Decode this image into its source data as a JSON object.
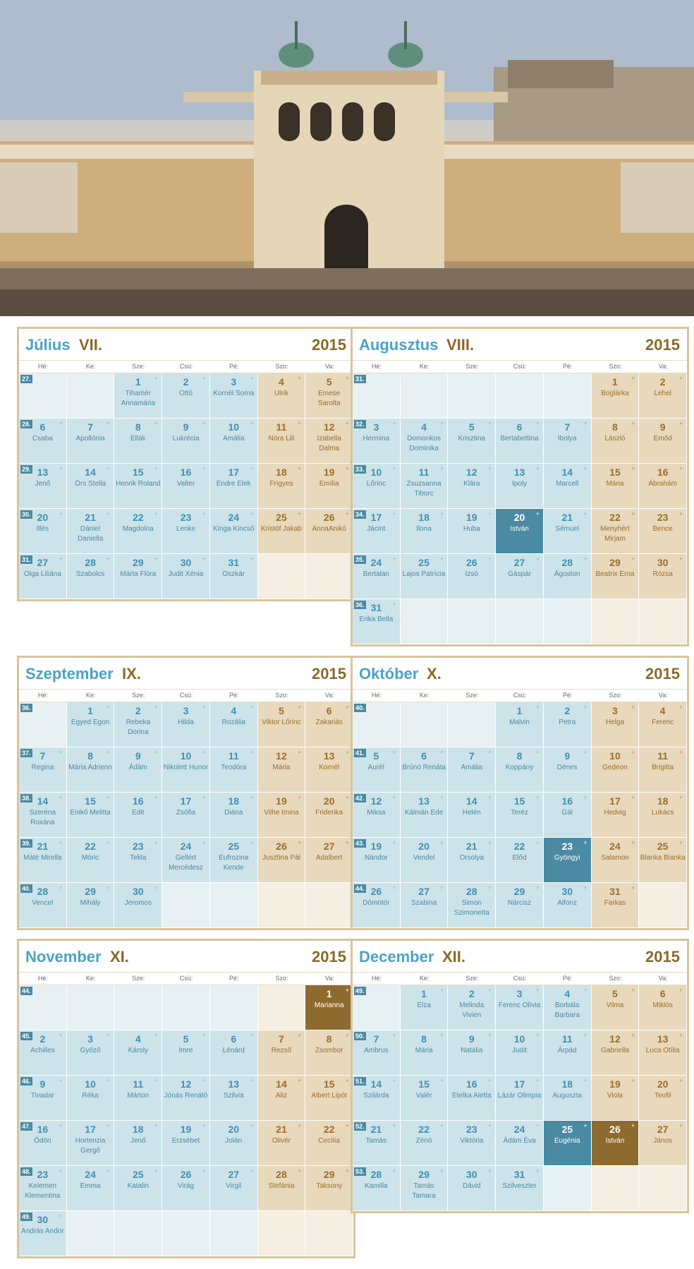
{
  "day_headers": [
    "Hé:",
    "Ke:",
    "Sze:",
    "Csü:",
    "Pé:",
    "Szo:",
    "Va:"
  ],
  "plus_symbol": "+",
  "photo": {
    "description_icon": "buda-castle-garden-photo"
  },
  "colors": {
    "accent_blue": "#4aa3c5",
    "accent_gold": "#8a6a28",
    "weekday_cell": "#cde3ea",
    "weekend_cell": "#e8d8bc"
  },
  "months": [
    {
      "name": "Július",
      "roman": "VII.",
      "year": "2015",
      "weeks": [
        {
          "num": "27.",
          "days": [
            null,
            null,
            {
              "d": "1",
              "n": "Tihamér Annamária"
            },
            {
              "d": "2",
              "n": "Ottó"
            },
            {
              "d": "3",
              "n": "Kornél Soma"
            },
            {
              "d": "4",
              "n": "Ulrik"
            },
            {
              "d": "5",
              "n": "Emese Sarolta"
            }
          ]
        },
        {
          "num": "28.",
          "days": [
            {
              "d": "6",
              "n": "Csaba"
            },
            {
              "d": "7",
              "n": "Apollónia"
            },
            {
              "d": "8",
              "n": "Ellák"
            },
            {
              "d": "9",
              "n": "Lukrécia"
            },
            {
              "d": "10",
              "n": "Amália"
            },
            {
              "d": "11",
              "n": "Nóra Lili"
            },
            {
              "d": "12",
              "n": "Izabella Dalma"
            }
          ]
        },
        {
          "num": "29.",
          "days": [
            {
              "d": "13",
              "n": "Jenő"
            },
            {
              "d": "14",
              "n": "Örs Stella"
            },
            {
              "d": "15",
              "n": "Henrik Roland"
            },
            {
              "d": "16",
              "n": "Valter"
            },
            {
              "d": "17",
              "n": "Endre Elek"
            },
            {
              "d": "18",
              "n": "Frigyes"
            },
            {
              "d": "19",
              "n": "Emília"
            }
          ]
        },
        {
          "num": "30.",
          "days": [
            {
              "d": "20",
              "n": "Illés"
            },
            {
              "d": "21",
              "n": "Dániel Daniella"
            },
            {
              "d": "22",
              "n": "Magdolna"
            },
            {
              "d": "23",
              "n": "Lenke"
            },
            {
              "d": "24",
              "n": "Kinga Kincső"
            },
            {
              "d": "25",
              "n": "Kristóf Jakab"
            },
            {
              "d": "26",
              "n": "AnnaAnikó"
            }
          ]
        },
        {
          "num": "31.",
          "days": [
            {
              "d": "27",
              "n": "Olga Liliána"
            },
            {
              "d": "28",
              "n": "Szabolcs"
            },
            {
              "d": "29",
              "n": "Márta Flóra"
            },
            {
              "d": "30",
              "n": "Judit Xénia"
            },
            {
              "d": "31",
              "n": "Oszkár"
            },
            null,
            null
          ]
        }
      ]
    },
    {
      "name": "Augusztus",
      "roman": "VIII.",
      "year": "2015",
      "weeks": [
        {
          "num": "31.",
          "days": [
            null,
            null,
            null,
            null,
            null,
            {
              "d": "1",
              "n": "Boglárka"
            },
            {
              "d": "2",
              "n": "Lehel"
            }
          ]
        },
        {
          "num": "32.",
          "days": [
            {
              "d": "3",
              "n": "Hermina"
            },
            {
              "d": "4",
              "n": "Domonkos Dominika"
            },
            {
              "d": "5",
              "n": "Krisztina"
            },
            {
              "d": "6",
              "n": "Bertabettina"
            },
            {
              "d": "7",
              "n": "Ibolya"
            },
            {
              "d": "8",
              "n": "László"
            },
            {
              "d": "9",
              "n": "Emőd"
            }
          ]
        },
        {
          "num": "33.",
          "days": [
            {
              "d": "10",
              "n": "Lőrinc"
            },
            {
              "d": "11",
              "n": "Zsuzsanna Tiborc"
            },
            {
              "d": "12",
              "n": "Klára"
            },
            {
              "d": "13",
              "n": "Ipoly"
            },
            {
              "d": "14",
              "n": "Marcell"
            },
            {
              "d": "15",
              "n": "Mária"
            },
            {
              "d": "16",
              "n": "Ábrahám"
            }
          ]
        },
        {
          "num": "34.",
          "days": [
            {
              "d": "17",
              "n": "Jácint"
            },
            {
              "d": "18",
              "n": "Ilona"
            },
            {
              "d": "19",
              "n": "Huba"
            },
            {
              "d": "20",
              "n": "István",
              "hl": true
            },
            {
              "d": "21",
              "n": "Sémuel"
            },
            {
              "d": "22",
              "n": "Menyhért Mirjam"
            },
            {
              "d": "23",
              "n": "Bence"
            }
          ]
        },
        {
          "num": "35.",
          "days": [
            {
              "d": "24",
              "n": "Bertalan"
            },
            {
              "d": "25",
              "n": "Lajos Patrícia"
            },
            {
              "d": "26",
              "n": "Izsó"
            },
            {
              "d": "27",
              "n": "Gáspár"
            },
            {
              "d": "28",
              "n": "Ágoston"
            },
            {
              "d": "29",
              "n": "Beatrix Erna"
            },
            {
              "d": "30",
              "n": "Rózsa"
            }
          ]
        },
        {
          "num": "36.",
          "days": [
            {
              "d": "31",
              "n": "Erika Bella"
            },
            null,
            null,
            null,
            null,
            null,
            null
          ]
        }
      ]
    },
    {
      "name": "Szeptember",
      "roman": "IX.",
      "year": "2015",
      "weeks": [
        {
          "num": "36.",
          "days": [
            null,
            {
              "d": "1",
              "n": "Egyed Egon"
            },
            {
              "d": "2",
              "n": "Rebeka Dorina"
            },
            {
              "d": "3",
              "n": "Hilda"
            },
            {
              "d": "4",
              "n": "Rozália"
            },
            {
              "d": "5",
              "n": "Viktor Lőrinc"
            },
            {
              "d": "6",
              "n": "Zakariás"
            }
          ]
        },
        {
          "num": "37.",
          "days": [
            {
              "d": "7",
              "n": "Regina"
            },
            {
              "d": "8",
              "n": "Mária Adrienn"
            },
            {
              "d": "9",
              "n": "Ádám"
            },
            {
              "d": "10",
              "n": "Nikolett Hunor"
            },
            {
              "d": "11",
              "n": "Teodóra"
            },
            {
              "d": "12",
              "n": "Mária"
            },
            {
              "d": "13",
              "n": "Kornél"
            }
          ]
        },
        {
          "num": "38.",
          "days": [
            {
              "d": "14",
              "n": "Szeréna Roxána"
            },
            {
              "d": "15",
              "n": "Enikő Melitta"
            },
            {
              "d": "16",
              "n": "Edit"
            },
            {
              "d": "17",
              "n": "Zsófia"
            },
            {
              "d": "18",
              "n": "Diána"
            },
            {
              "d": "19",
              "n": "Vilhe Imina"
            },
            {
              "d": "20",
              "n": "Friderika"
            }
          ]
        },
        {
          "num": "39.",
          "days": [
            {
              "d": "21",
              "n": "Máté Mirella"
            },
            {
              "d": "22",
              "n": "Móric"
            },
            {
              "d": "23",
              "n": "Tekla"
            },
            {
              "d": "24",
              "n": "Gellért Mercédesz"
            },
            {
              "d": "25",
              "n": "Eufrozina Kende"
            },
            {
              "d": "26",
              "n": "Jusztina Pál"
            },
            {
              "d": "27",
              "n": "Adalbert"
            }
          ]
        },
        {
          "num": "40.",
          "days": [
            {
              "d": "28",
              "n": "Vencel"
            },
            {
              "d": "29",
              "n": "Mihály"
            },
            {
              "d": "30",
              "n": "Jeromos"
            },
            null,
            null,
            null,
            null
          ]
        }
      ]
    },
    {
      "name": "Október",
      "roman": "X.",
      "year": "2015",
      "weeks": [
        {
          "num": "40.",
          "days": [
            null,
            null,
            null,
            {
              "d": "1",
              "n": "Malvin"
            },
            {
              "d": "2",
              "n": "Petra"
            },
            {
              "d": "3",
              "n": "Helga"
            },
            {
              "d": "4",
              "n": "Ferenc"
            }
          ]
        },
        {
          "num": "41.",
          "days": [
            {
              "d": "5",
              "n": "Aurél"
            },
            {
              "d": "6",
              "n": "Brúnó Renáta"
            },
            {
              "d": "7",
              "n": "Amália"
            },
            {
              "d": "8",
              "n": "Koppány"
            },
            {
              "d": "9",
              "n": "Dénes"
            },
            {
              "d": "10",
              "n": "Gedeon"
            },
            {
              "d": "11",
              "n": "Brigitta"
            }
          ]
        },
        {
          "num": "42.",
          "days": [
            {
              "d": "12",
              "n": "Miksa"
            },
            {
              "d": "13",
              "n": "Kálmán Ede"
            },
            {
              "d": "14",
              "n": "Helén"
            },
            {
              "d": "15",
              "n": "Teréz"
            },
            {
              "d": "16",
              "n": "Gál"
            },
            {
              "d": "17",
              "n": "Hedvig"
            },
            {
              "d": "18",
              "n": "Lukács"
            }
          ]
        },
        {
          "num": "43.",
          "days": [
            {
              "d": "19",
              "n": "Nándor"
            },
            {
              "d": "20",
              "n": "Vendel"
            },
            {
              "d": "21",
              "n": "Orsolya"
            },
            {
              "d": "22",
              "n": "Előd"
            },
            {
              "d": "23",
              "n": "Gyöngyi",
              "hl": true
            },
            {
              "d": "24",
              "n": "Salamon"
            },
            {
              "d": "25",
              "n": "Blanka Bianka"
            }
          ]
        },
        {
          "num": "44.",
          "days": [
            {
              "d": "26",
              "n": "Dömötör"
            },
            {
              "d": "27",
              "n": "Szabina"
            },
            {
              "d": "28",
              "n": "Simon Szimonetta"
            },
            {
              "d": "29",
              "n": "Nárcisz"
            },
            {
              "d": "30",
              "n": "Alfonz"
            },
            {
              "d": "31",
              "n": "Farkas"
            },
            null
          ]
        }
      ]
    },
    {
      "name": "November",
      "roman": "XI.",
      "year": "2015",
      "weeks": [
        {
          "num": "44.",
          "days": [
            null,
            null,
            null,
            null,
            null,
            null,
            {
              "d": "1",
              "n": "Marianna",
              "hl": true
            }
          ]
        },
        {
          "num": "45.",
          "days": [
            {
              "d": "2",
              "n": "Achilles"
            },
            {
              "d": "3",
              "n": "Győző"
            },
            {
              "d": "4",
              "n": "Károly"
            },
            {
              "d": "5",
              "n": "Imre"
            },
            {
              "d": "6",
              "n": "Lénárd"
            },
            {
              "d": "7",
              "n": "Rezső"
            },
            {
              "d": "8",
              "n": "Zsombor"
            }
          ]
        },
        {
          "num": "46.",
          "days": [
            {
              "d": "9",
              "n": "Tivadar"
            },
            {
              "d": "10",
              "n": "Réka"
            },
            {
              "d": "11",
              "n": "Márton"
            },
            {
              "d": "12",
              "n": "Jónás Renátó"
            },
            {
              "d": "13",
              "n": "Szilvia"
            },
            {
              "d": "14",
              "n": "Aliz"
            },
            {
              "d": "15",
              "n": "Albert Lipót"
            }
          ]
        },
        {
          "num": "47.",
          "days": [
            {
              "d": "16",
              "n": "Ödön"
            },
            {
              "d": "17",
              "n": "Hortenzia Gergő"
            },
            {
              "d": "18",
              "n": "Jenő"
            },
            {
              "d": "19",
              "n": "Erzsébet"
            },
            {
              "d": "20",
              "n": "Jolán"
            },
            {
              "d": "21",
              "n": "Olivér"
            },
            {
              "d": "22",
              "n": "Cecília"
            }
          ]
        },
        {
          "num": "48.",
          "days": [
            {
              "d": "23",
              "n": "Kelemen Klementina"
            },
            {
              "d": "24",
              "n": "Emma"
            },
            {
              "d": "25",
              "n": "Katalin"
            },
            {
              "d": "26",
              "n": "Virág"
            },
            {
              "d": "27",
              "n": "Virgil"
            },
            {
              "d": "28",
              "n": "Stefánia"
            },
            {
              "d": "29",
              "n": "Taksony"
            }
          ]
        },
        {
          "num": "49.",
          "days": [
            {
              "d": "30",
              "n": "András Andor"
            },
            null,
            null,
            null,
            null,
            null,
            null
          ]
        }
      ]
    },
    {
      "name": "December",
      "roman": "XII.",
      "year": "2015",
      "weeks": [
        {
          "num": "49.",
          "days": [
            null,
            {
              "d": "1",
              "n": "Elza"
            },
            {
              "d": "2",
              "n": "Melinda Vivien"
            },
            {
              "d": "3",
              "n": "Ferenc Olívia"
            },
            {
              "d": "4",
              "n": "Borbála Barbara"
            },
            {
              "d": "5",
              "n": "Vilma"
            },
            {
              "d": "6",
              "n": "Miklós"
            }
          ]
        },
        {
          "num": "50.",
          "days": [
            {
              "d": "7",
              "n": "Ambrus"
            },
            {
              "d": "8",
              "n": "Mária"
            },
            {
              "d": "9",
              "n": "Natália"
            },
            {
              "d": "10",
              "n": "Judit"
            },
            {
              "d": "11",
              "n": "Árpád"
            },
            {
              "d": "12",
              "n": "Gabriella"
            },
            {
              "d": "13",
              "n": "Luca Otília"
            }
          ]
        },
        {
          "num": "51.",
          "days": [
            {
              "d": "14",
              "n": "Szilárda"
            },
            {
              "d": "15",
              "n": "Valér"
            },
            {
              "d": "16",
              "n": "Etelka Aletta"
            },
            {
              "d": "17",
              "n": "Lázár Olimpia"
            },
            {
              "d": "18",
              "n": "Auguszta"
            },
            {
              "d": "19",
              "n": "Viola"
            },
            {
              "d": "20",
              "n": "Teofil"
            }
          ]
        },
        {
          "num": "52.",
          "days": [
            {
              "d": "21",
              "n": "Tamás"
            },
            {
              "d": "22",
              "n": "Zénó"
            },
            {
              "d": "23",
              "n": "Viktória"
            },
            {
              "d": "24",
              "n": "Ádám Éva"
            },
            {
              "d": "25",
              "n": "Eugénia",
              "hl": true
            },
            {
              "d": "26",
              "n": "István",
              "hl": true
            },
            {
              "d": "27",
              "n": "János"
            }
          ]
        },
        {
          "num": "53.",
          "days": [
            {
              "d": "28",
              "n": "Kamilla"
            },
            {
              "d": "29",
              "n": "Tamás Tamara"
            },
            {
              "d": "30",
              "n": "Dávid"
            },
            {
              "d": "31",
              "n": "Szilveszter"
            },
            null,
            null,
            null
          ]
        }
      ]
    }
  ]
}
